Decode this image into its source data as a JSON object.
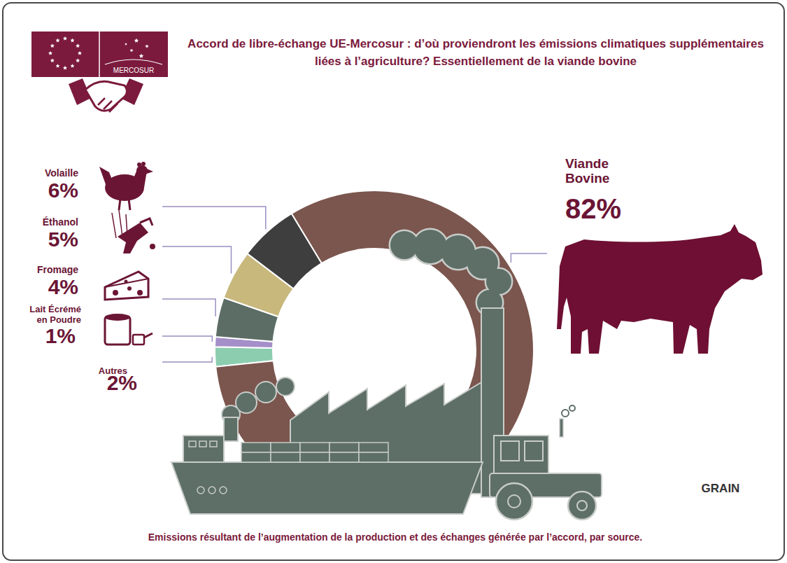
{
  "chart_data": {
    "type": "donut",
    "title": "Accord de libre-échange UE-Mercosur : d’où proviendront les émissions climatiques supplémentaires liées à l’agriculture? Essentiellement de la viande bovine",
    "caption": "Emissions résultant de l’augmentation de la production et des échanges générée par l’accord, par source.",
    "categories": [
      "Autres",
      "Lait Écrémé en Poudre",
      "Fromage",
      "Éthanol",
      "Volaille",
      "Viande Bovine"
    ],
    "values": [
      2,
      1,
      4,
      5,
      6,
      82
    ],
    "value_labels": [
      "2%",
      "1%",
      "4%",
      "5%",
      "6%",
      "82%"
    ],
    "colors": [
      "#8ccdb0",
      "#a48fc9",
      "#5c6d65",
      "#c8b87c",
      "#3e3e3e",
      "#7b564e"
    ],
    "data_labels": true
  },
  "logos": {
    "mercosur": "MERCOSUR",
    "source": "GRAIN"
  }
}
